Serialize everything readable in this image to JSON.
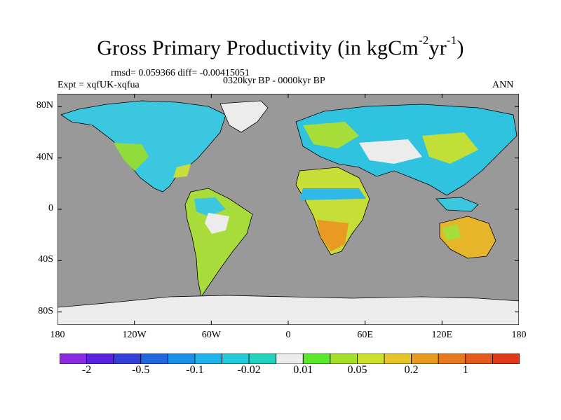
{
  "title": {
    "main": "Gross Primary Productivity (in kgCm",
    "sup1": "-2",
    "mid": "yr",
    "sup2": "-1",
    "end": ")"
  },
  "stats": {
    "rmsd": "rmsd= 0.059366 diff= -0.00415051",
    "expt": "Expt = xqfUK-xqfua",
    "period": "0320kyr BP - 0000kyr BP",
    "season": "ANN"
  },
  "axes": {
    "lat_ticks": [
      {
        "label": "80N",
        "lat": 80
      },
      {
        "label": "40N",
        "lat": 40
      },
      {
        "label": "0",
        "lat": 0
      },
      {
        "label": "40S",
        "lat": -40
      },
      {
        "label": "80S",
        "lat": -80
      }
    ],
    "lon_ticks": [
      {
        "label": "180",
        "lon": -180
      },
      {
        "label": "120W",
        "lon": -120
      },
      {
        "label": "60W",
        "lon": -60
      },
      {
        "label": "0",
        "lon": 0
      },
      {
        "label": "60E",
        "lon": 60
      },
      {
        "label": "120E",
        "lon": 120
      },
      {
        "label": "180",
        "lon": 180
      }
    ],
    "lat_range": [
      -90,
      90
    ],
    "lon_range": [
      -180,
      180
    ]
  },
  "colorbar": {
    "colors": [
      "#8a2be2",
      "#5a23e0",
      "#3441d9",
      "#1f68e0",
      "#1b90e8",
      "#20b2ea",
      "#22c9d9",
      "#1fd3bd",
      "#ececec",
      "#5ae82a",
      "#a4e02a",
      "#cfe02a",
      "#e6c42a",
      "#e69a1f",
      "#e6781f",
      "#e35a1f",
      "#e03a1a"
    ],
    "labels": [
      {
        "text": "-2",
        "after": 1
      },
      {
        "text": "-0.5",
        "after": 3
      },
      {
        "text": "-0.1",
        "after": 5
      },
      {
        "text": "-0.02",
        "after": 7
      },
      {
        "text": "0.01",
        "after": 9
      },
      {
        "text": "0.05",
        "after": 11
      },
      {
        "text": "0.2",
        "after": 13
      },
      {
        "text": "1",
        "after": 15
      }
    ]
  },
  "colors": {
    "ocean": "#999999",
    "neutral": "#ececec"
  }
}
